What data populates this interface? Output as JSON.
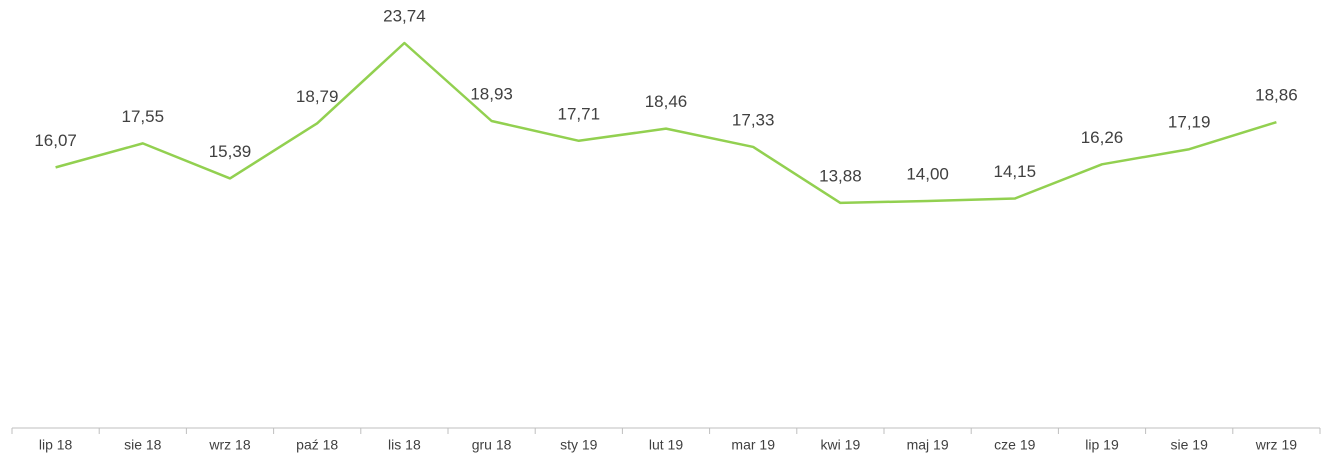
{
  "chart_data": {
    "type": "line",
    "categories": [
      "lip 18",
      "sie 18",
      "wrz 18",
      "paź 18",
      "lis 18",
      "gru 18",
      "sty 19",
      "lut 19",
      "mar 19",
      "kwi 19",
      "maj 19",
      "cze 19",
      "lip 19",
      "sie 19",
      "wrz 19"
    ],
    "values": [
      16.07,
      17.55,
      15.39,
      18.79,
      23.74,
      18.93,
      17.71,
      18.46,
      17.33,
      13.88,
      14.0,
      14.15,
      16.26,
      17.19,
      18.86
    ],
    "value_labels": [
      "16,07",
      "17,55",
      "15,39",
      "18,79",
      "23,74",
      "18,93",
      "17,71",
      "18,46",
      "17,33",
      "13,88",
      "14,00",
      "14,15",
      "16,26",
      "17,19",
      "18,86"
    ],
    "color": "#92d050"
  }
}
